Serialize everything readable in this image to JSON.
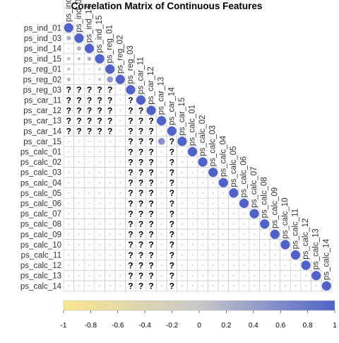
{
  "chart_data": {
    "type": "heatmap",
    "title": "Correlation Matrix of Continuous Features",
    "variables": [
      "ps_ind_01",
      "ps_ind_03",
      "ps_ind_14",
      "ps_ind_15",
      "ps_reg_01",
      "ps_reg_02",
      "ps_reg_03",
      "ps_car_11",
      "ps_car_12",
      "ps_car_13",
      "ps_car_14",
      "ps_car_15",
      "ps_calc_01",
      "ps_calc_02",
      "ps_calc_03",
      "ps_calc_04",
      "ps_calc_05",
      "ps_calc_06",
      "ps_calc_07",
      "ps_calc_08",
      "ps_calc_09",
      "ps_calc_10",
      "ps_calc_11",
      "ps_calc_12",
      "ps_calc_13",
      "ps_calc_14"
    ],
    "layout": "lower-triangle",
    "missing_marker": "?",
    "missing_description": "Cells marked '?' are NA correlations; values for the remaining off-diagonal cells are approximate (mostly near 0).",
    "known_values": [
      {
        "row": "ps_ind_03",
        "col": "ps_ind_01",
        "value": 0.22
      },
      {
        "row": "ps_ind_14",
        "col": "ps_ind_03",
        "value": 0.22
      },
      {
        "row": "ps_ind_15",
        "col": "ps_ind_01",
        "value": 0.12
      },
      {
        "row": "ps_ind_15",
        "col": "ps_ind_03",
        "value": 0.12
      },
      {
        "row": "ps_ind_15",
        "col": "ps_ind_14",
        "value": 0.18
      },
      {
        "row": "ps_reg_01",
        "col": "ps_ind_01",
        "value": 0.1
      },
      {
        "row": "ps_reg_01",
        "col": "ps_ind_15",
        "value": 0.08
      },
      {
        "row": "ps_reg_02",
        "col": "ps_ind_01",
        "value": 0.15
      },
      {
        "row": "ps_reg_02",
        "col": "ps_ind_15",
        "value": 0.1
      },
      {
        "row": "ps_reg_02",
        "col": "ps_reg_01",
        "value": 0.45
      },
      {
        "row": "ps_car_13",
        "col": "ps_car_12",
        "value": 0.2
      },
      {
        "row": "ps_car_15",
        "col": "ps_car_13",
        "value": 0.55
      }
    ],
    "legend": {
      "position": "bottom",
      "ticks": [
        "-1",
        "-0.8",
        "-0.6",
        "-0.4",
        "-0.2",
        "0",
        "0.2",
        "0.4",
        "0.6",
        "0.8",
        "1"
      ],
      "range": [
        -1,
        1
      ],
      "colors": {
        "neg": "#f9e68e",
        "mid": "#c8c8c8",
        "pos": "#5062c8"
      }
    }
  }
}
